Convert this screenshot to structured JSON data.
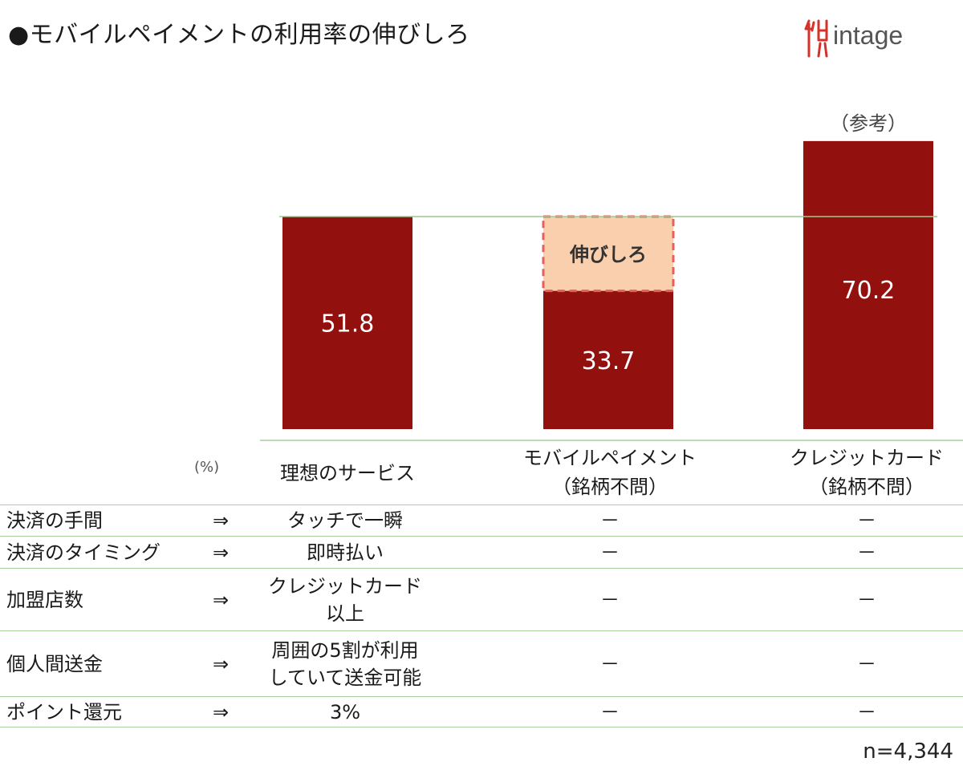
{
  "title": "●モバイルペイメントの利用率の伸びしろ",
  "logo": {
    "text": "intage",
    "icon": "intage-logo-icon"
  },
  "colors": {
    "bar": "#92110e",
    "gap_fill": "#f9cfae",
    "gap_border": "#e5605a",
    "rule": "#a8cfa0"
  },
  "chart_data": {
    "type": "bar",
    "unit": "(%)",
    "categories": [
      "理想のサービス",
      "モバイルペイメント\n（銘柄不問）",
      "クレジットカード\n（銘柄不問）"
    ],
    "values": [
      51.8,
      33.7,
      70.2
    ],
    "value_labels": [
      "51.8",
      "33.7",
      "70.2"
    ],
    "reference_line": 51.8,
    "gap_annotation": {
      "category_index": 1,
      "label": "伸びしろ"
    },
    "reference_label": {
      "category_index": 2,
      "label": "（参考）"
    },
    "grid": false
  },
  "table": {
    "arrow": "⇒",
    "rows": [
      {
        "item": "決済の手間",
        "ideal": "タッチで一瞬",
        "mobile": "－",
        "credit": "－"
      },
      {
        "item": "決済のタイミング",
        "ideal": "即時払い",
        "mobile": "－",
        "credit": "－"
      },
      {
        "item": "加盟店数",
        "ideal": "クレジットカード\n以上",
        "mobile": "－",
        "credit": "－"
      },
      {
        "item": "個人間送金",
        "ideal": "周囲の5割が利用\nしていて送金可能",
        "mobile": "－",
        "credit": "－"
      },
      {
        "item": "ポイント還元",
        "ideal": "3%",
        "mobile": "－",
        "credit": "－"
      }
    ]
  },
  "note": "n=4,344"
}
